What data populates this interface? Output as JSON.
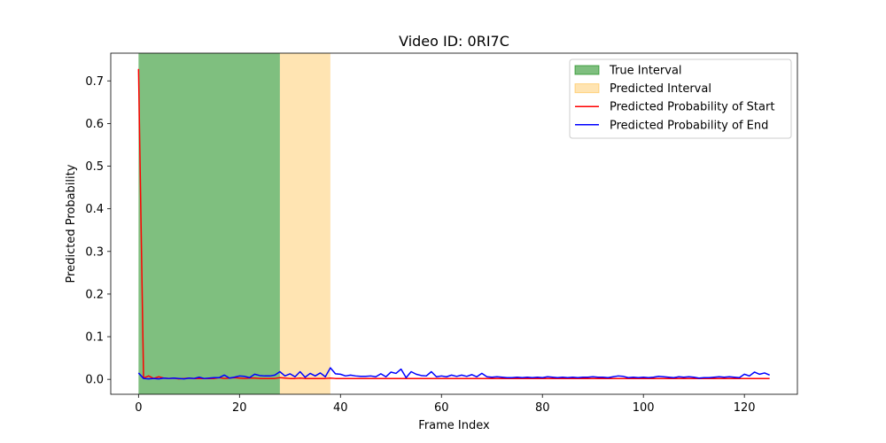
{
  "chart_data": {
    "type": "line",
    "title": "Video ID: 0RI7C",
    "xlabel": "Frame Index",
    "ylabel": "Predicted Probability",
    "xlim": [
      -5.5,
      130.5
    ],
    "ylim": [
      -0.035,
      0.765
    ],
    "xticks": [
      0,
      20,
      40,
      60,
      80,
      100,
      120
    ],
    "xtick_labels": [
      "0",
      "20",
      "40",
      "60",
      "80",
      "100",
      "120"
    ],
    "yticks": [
      0.0,
      0.1,
      0.2,
      0.3,
      0.4,
      0.5,
      0.6,
      0.7
    ],
    "ytick_labels": [
      "0.0",
      "0.1",
      "0.2",
      "0.3",
      "0.4",
      "0.5",
      "0.6",
      "0.7"
    ],
    "grid": false,
    "legend_position": "upper right",
    "spans": [
      {
        "name": "True Interval",
        "x0": 0,
        "x1": 28,
        "color": "#008000",
        "alpha": 0.5
      },
      {
        "name": "Predicted Interval",
        "x0": 28,
        "x1": 38,
        "color": "#ffa500",
        "alpha": 0.3
      }
    ],
    "series": [
      {
        "name": "Predicted Probability of Start",
        "color": "#ff0000",
        "values": [
          0.728,
          0.003,
          0.008,
          0.002,
          0.006,
          0.003,
          0.002,
          0.003,
          0.001,
          0.002,
          0.003,
          0.002,
          0.002,
          0.002,
          0.002,
          0.002,
          0.004,
          0.002,
          0.003,
          0.004,
          0.003,
          0.002,
          0.003,
          0.003,
          0.002,
          0.002,
          0.002,
          0.002,
          0.004,
          0.003,
          0.002,
          0.002,
          0.003,
          0.002,
          0.002,
          0.002,
          0.002,
          0.002,
          0.003,
          0.002,
          0.002,
          0.002,
          0.002,
          0.002,
          0.002,
          0.002,
          0.002,
          0.002,
          0.002,
          0.002,
          0.002,
          0.002,
          0.002,
          0.002,
          0.002,
          0.002,
          0.002,
          0.002,
          0.002,
          0.002,
          0.002,
          0.002,
          0.002,
          0.002,
          0.002,
          0.002,
          0.002,
          0.002,
          0.002,
          0.002,
          0.002,
          0.002,
          0.002,
          0.002,
          0.002,
          0.002,
          0.002,
          0.002,
          0.002,
          0.002,
          0.002,
          0.002,
          0.002,
          0.002,
          0.002,
          0.002,
          0.002,
          0.002,
          0.002,
          0.002,
          0.002,
          0.002,
          0.002,
          0.002,
          0.002,
          0.002,
          0.002,
          0.002,
          0.002,
          0.002,
          0.002,
          0.002,
          0.002,
          0.002,
          0.002,
          0.002,
          0.002,
          0.002,
          0.002,
          0.002,
          0.002,
          0.002,
          0.002,
          0.002,
          0.002,
          0.002,
          0.002,
          0.002,
          0.002,
          0.002,
          0.002,
          0.002,
          0.002,
          0.002,
          0.002,
          0.002
        ]
      },
      {
        "name": "Predicted Probability of End",
        "color": "#0000ff",
        "values": [
          0.015,
          0.002,
          0.001,
          0.002,
          0.001,
          0.003,
          0.002,
          0.003,
          0.002,
          0.001,
          0.003,
          0.002,
          0.005,
          0.002,
          0.003,
          0.004,
          0.004,
          0.01,
          0.003,
          0.005,
          0.008,
          0.007,
          0.004,
          0.012,
          0.009,
          0.008,
          0.008,
          0.01,
          0.018,
          0.008,
          0.013,
          0.006,
          0.018,
          0.005,
          0.014,
          0.008,
          0.015,
          0.006,
          0.027,
          0.013,
          0.012,
          0.008,
          0.01,
          0.008,
          0.007,
          0.007,
          0.008,
          0.006,
          0.013,
          0.006,
          0.017,
          0.014,
          0.024,
          0.004,
          0.018,
          0.012,
          0.009,
          0.008,
          0.018,
          0.006,
          0.008,
          0.006,
          0.01,
          0.007,
          0.01,
          0.007,
          0.011,
          0.006,
          0.014,
          0.006,
          0.005,
          0.006,
          0.005,
          0.004,
          0.004,
          0.005,
          0.004,
          0.005,
          0.004,
          0.005,
          0.004,
          0.006,
          0.005,
          0.004,
          0.005,
          0.004,
          0.005,
          0.004,
          0.005,
          0.005,
          0.006,
          0.005,
          0.005,
          0.004,
          0.006,
          0.008,
          0.007,
          0.004,
          0.005,
          0.004,
          0.005,
          0.004,
          0.005,
          0.007,
          0.006,
          0.005,
          0.004,
          0.006,
          0.005,
          0.006,
          0.005,
          0.003,
          0.004,
          0.004,
          0.005,
          0.006,
          0.005,
          0.006,
          0.005,
          0.004,
          0.012,
          0.008,
          0.017,
          0.012,
          0.015,
          0.01
        ]
      }
    ]
  }
}
